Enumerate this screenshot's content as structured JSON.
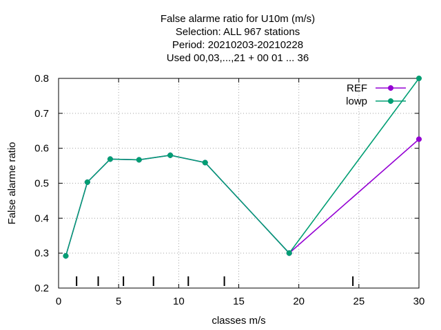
{
  "chart_data": {
    "type": "line",
    "title_lines": [
      "False alarme ratio  for U10m (m/s)",
      "Selection: ALL    967 stations",
      "Period: 20210203-20210228",
      "Used  00,03,...,21  + 00 01 ... 36"
    ],
    "xlabel": "classes m/s",
    "ylabel": "False alarme ratio",
    "xlim": [
      0,
      30
    ],
    "ylim": [
      0.2,
      0.8
    ],
    "xticks": [
      0,
      5,
      10,
      15,
      20,
      25,
      30
    ],
    "yticks": [
      0.2,
      0.3,
      0.4,
      0.5,
      0.6,
      0.7,
      0.8
    ],
    "grid": true,
    "legend_position": "top-right",
    "class_boundary_marks": [
      1.5,
      3.3,
      5.4,
      7.9,
      10.8,
      13.8,
      24.5
    ],
    "series": [
      {
        "name": "REF",
        "color": "#9400d3",
        "x": [
          0.6,
          2.4,
          4.3,
          6.7,
          9.3,
          12.2,
          19.2,
          30
        ],
        "y": [
          0.292,
          0.503,
          0.569,
          0.567,
          0.58,
          0.559,
          0.3,
          0.626
        ]
      },
      {
        "name": "lowp",
        "color": "#009e73",
        "x": [
          0.6,
          2.4,
          4.3,
          6.7,
          9.3,
          12.2,
          19.2,
          30
        ],
        "y": [
          0.292,
          0.503,
          0.569,
          0.567,
          0.58,
          0.559,
          0.3,
          0.8
        ]
      }
    ]
  }
}
